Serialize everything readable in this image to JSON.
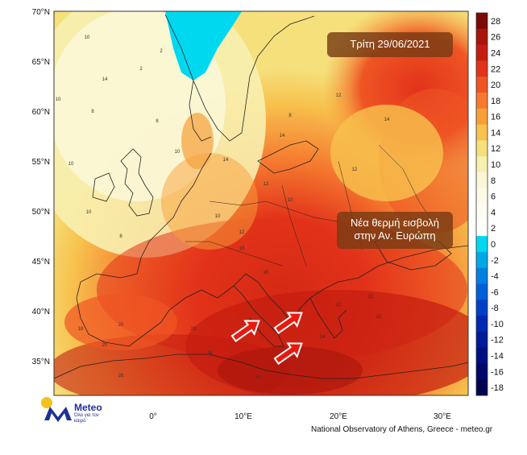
{
  "map": {
    "date_label": "Τρίτη 29/06/2021",
    "note_line1": "Νέα θερμή εισβολή",
    "note_line2": "στην Αν. Ευρώπη",
    "credit": "National Observatory of Athens, Greece - meteo.gr",
    "logo_text": "Meteo",
    "logo_sub": "Όλα για τον καιρό",
    "lat_labels": [
      "70°N",
      "65°N",
      "60°N",
      "55°N",
      "50°N",
      "45°N",
      "40°N",
      "35°N"
    ],
    "lon_labels": [
      "0°",
      "10°E",
      "20°E",
      "30°E"
    ],
    "colorbar_labels": [
      "28",
      "26",
      "24",
      "22",
      "20",
      "18",
      "16",
      "14",
      "12",
      "10",
      "8",
      "6",
      "4",
      "2",
      "0",
      "-2",
      "-4",
      "-6",
      "-8",
      "-10",
      "-12",
      "-14",
      "-16",
      "-18"
    ],
    "colorbar_colors": [
      "#7a0a06",
      "#a8150b",
      "#c41d10",
      "#e2331a",
      "#ef5524",
      "#f57a2f",
      "#f7a03a",
      "#f7c24e",
      "#f5e07c",
      "#f8f0b0",
      "#fbf7d6",
      "#fdfbe8",
      "#fefdf4",
      "#fffffe",
      "#00d8f0",
      "#00a8e8",
      "#0080e0",
      "#0060d8",
      "#0040c8",
      "#0028b0",
      "#001a98",
      "#000f80",
      "#000868",
      "#000450"
    ],
    "contour_labels": [
      "10",
      "2",
      "8",
      "8",
      "10",
      "2",
      "10",
      "14",
      "10",
      "10",
      "8",
      "14",
      "14",
      "12",
      "8",
      "12",
      "12",
      "10",
      "12",
      "10",
      "14",
      "18",
      "20",
      "22",
      "22",
      "20",
      "24",
      "20",
      "18",
      "20",
      "16",
      "22",
      "26",
      "24"
    ],
    "brand_colors": {
      "logo_blue": "#1e2f95",
      "logo_yellow": "#f3c21b",
      "box": "#783c14"
    }
  }
}
